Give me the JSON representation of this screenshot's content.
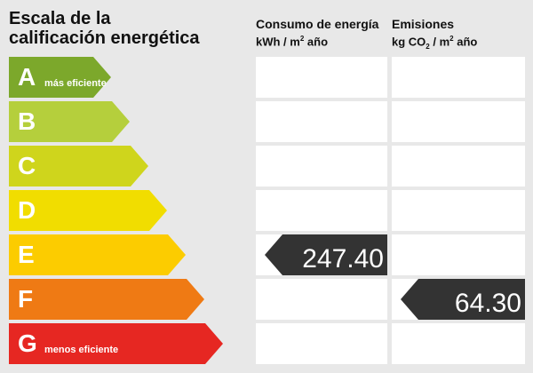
{
  "title": "Escala de la\ncalificación energética",
  "consumption_header": {
    "line1": "Consumo de energía",
    "line2_pre": "kWh / m",
    "line2_sup": "2",
    "line2_post": " año"
  },
  "emissions_header": {
    "line1": "Emisiones",
    "line2_pre": "kg CO",
    "line2_sub": "2",
    "line2_mid": " / m",
    "line2_sup": "2",
    "line2_post": " año"
  },
  "ratings": [
    {
      "letter": "A",
      "color": "#7ca82b",
      "note": "más eficiente"
    },
    {
      "letter": "B",
      "color": "#b5cf3c",
      "note": ""
    },
    {
      "letter": "C",
      "color": "#cfd51c",
      "note": ""
    },
    {
      "letter": "D",
      "color": "#f1dd00",
      "note": ""
    },
    {
      "letter": "E",
      "color": "#fccc00",
      "note": ""
    },
    {
      "letter": "F",
      "color": "#ef7a14",
      "note": ""
    },
    {
      "letter": "G",
      "color": "#e62722",
      "note": "menos eficiente"
    }
  ],
  "consumption": {
    "rating": "E",
    "value": "247.40"
  },
  "emissions": {
    "rating": "F",
    "value": "64.30"
  },
  "indicator_color": "#333333"
}
